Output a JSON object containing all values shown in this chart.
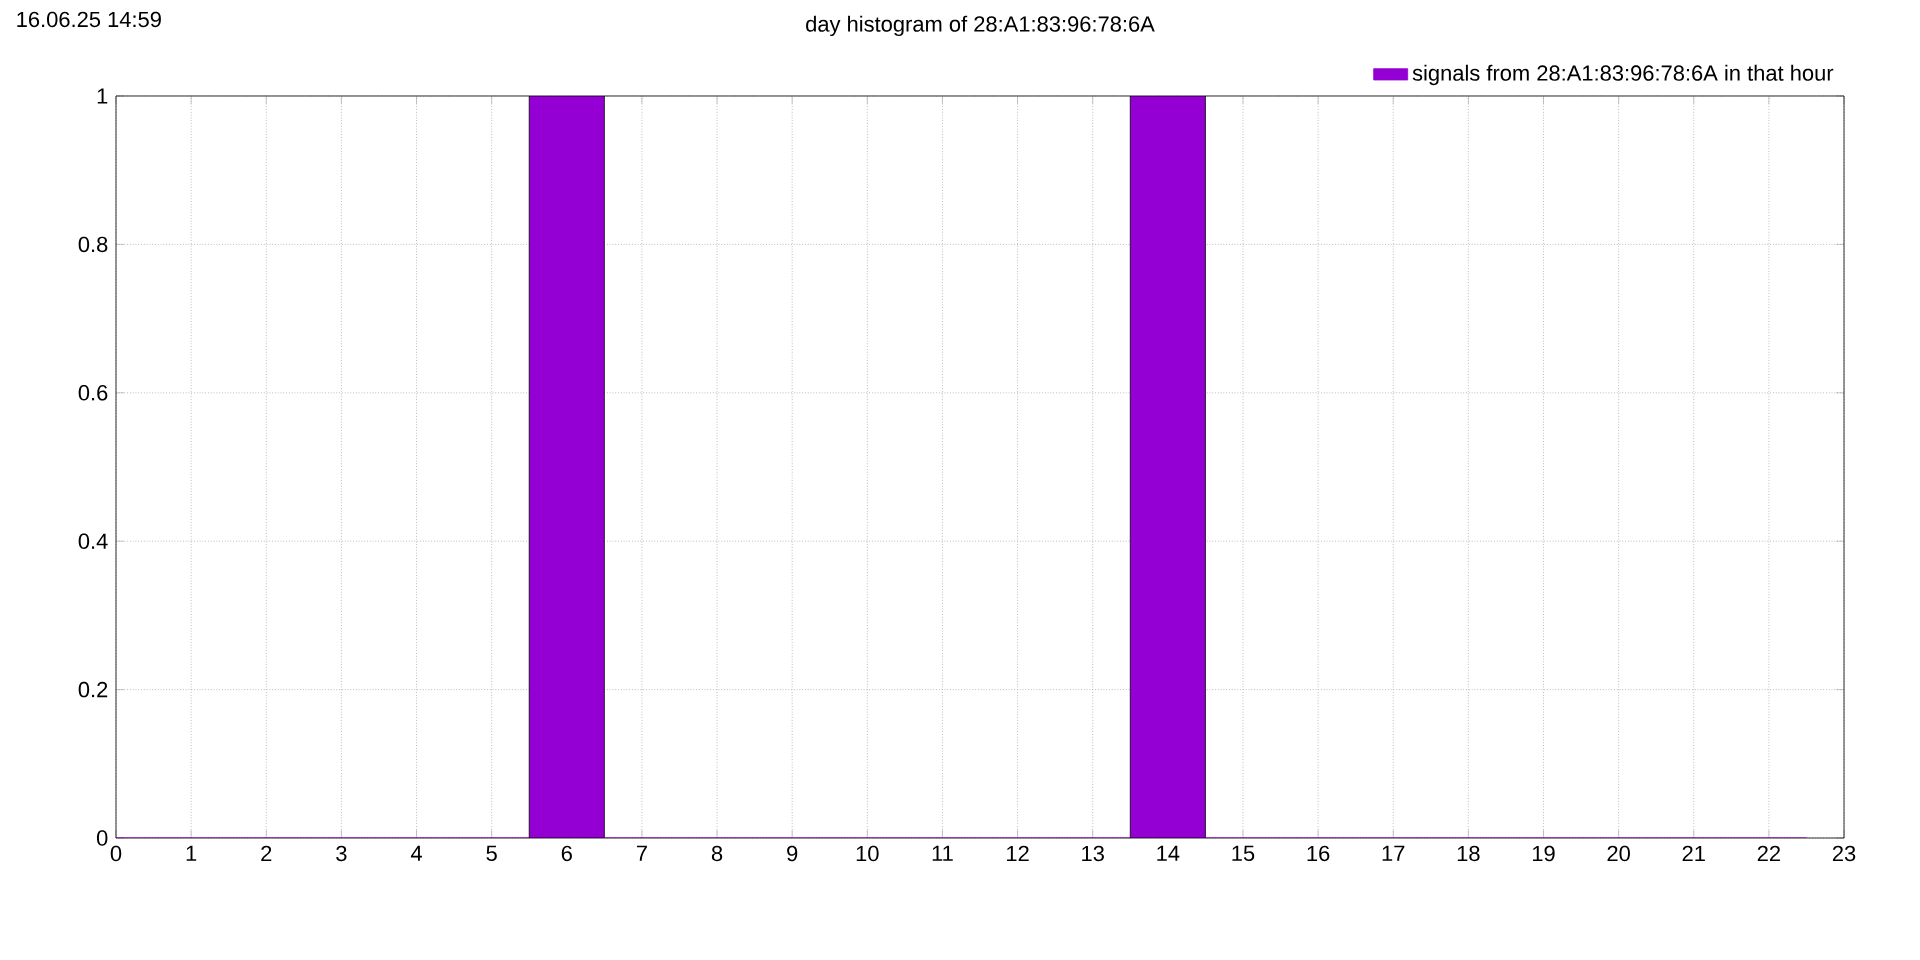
{
  "chart_data": {
    "type": "bar",
    "title": "day histogram of 28:A1:83:96:78:6A",
    "annotations": [
      "16.06.25 14:59"
    ],
    "x": [
      0,
      1,
      2,
      3,
      4,
      5,
      6,
      7,
      8,
      9,
      10,
      11,
      12,
      13,
      14,
      15,
      16,
      17,
      18,
      19,
      20,
      21,
      22
    ],
    "series": [
      {
        "name": "signals from 28:A1:83:96:78:6A in that hour",
        "color": "#9400d3",
        "values": [
          0,
          0,
          0,
          0,
          0,
          0,
          1,
          0,
          0,
          0,
          0,
          0,
          0,
          0,
          1,
          0,
          0,
          0,
          0,
          0,
          0,
          0,
          0
        ]
      }
    ],
    "xlim": [
      0,
      23
    ],
    "xticks": [
      0,
      1,
      2,
      3,
      4,
      5,
      6,
      7,
      8,
      9,
      10,
      11,
      12,
      13,
      14,
      15,
      16,
      17,
      18,
      19,
      20,
      21,
      22,
      23
    ],
    "ylim": [
      0,
      1
    ],
    "yticks": [
      0,
      0.2,
      0.4,
      0.6,
      0.8,
      1
    ],
    "grid": true,
    "legend": "top right"
  }
}
